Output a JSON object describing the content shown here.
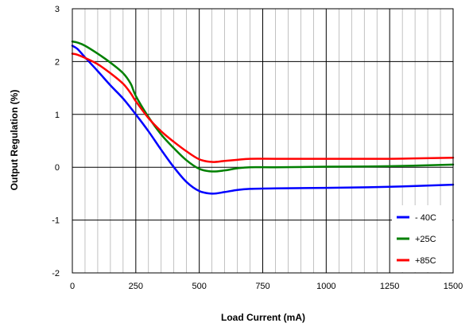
{
  "chart_data": {
    "type": "line",
    "title": "",
    "xlabel": "Load Current (mA)",
    "ylabel": "Output Regulation (%)",
    "xlim": [
      0,
      1500
    ],
    "ylim": [
      -2,
      3
    ],
    "x_ticks": [
      0,
      250,
      500,
      750,
      1000,
      1250,
      1500
    ],
    "y_ticks": [
      -2,
      -1,
      0,
      1,
      2,
      3
    ],
    "x_minor_step": 50,
    "grid": true,
    "legend_position": "bottom-right",
    "series": [
      {
        "name": "- 40C",
        "color": "#0000ff",
        "x": [
          0,
          20,
          50,
          100,
          150,
          200,
          250,
          300,
          350,
          400,
          450,
          500,
          550,
          600,
          650,
          700,
          800,
          1000,
          1250,
          1500
        ],
        "y": [
          2.3,
          2.24,
          2.08,
          1.82,
          1.55,
          1.3,
          1.0,
          0.68,
          0.33,
          0.0,
          -0.28,
          -0.45,
          -0.5,
          -0.47,
          -0.43,
          -0.41,
          -0.4,
          -0.39,
          -0.37,
          -0.33
        ]
      },
      {
        "name": "+25C",
        "color": "#008000",
        "x": [
          0,
          20,
          50,
          100,
          150,
          200,
          230,
          250,
          300,
          350,
          400,
          450,
          500,
          550,
          600,
          650,
          700,
          800,
          1000,
          1250,
          1500
        ],
        "y": [
          2.38,
          2.36,
          2.3,
          2.15,
          1.98,
          1.78,
          1.58,
          1.35,
          0.95,
          0.62,
          0.36,
          0.13,
          -0.03,
          -0.08,
          -0.06,
          -0.02,
          0.0,
          0.0,
          0.01,
          0.02,
          0.05
        ]
      },
      {
        "name": "+85C",
        "color": "#ff0000",
        "x": [
          0,
          20,
          50,
          100,
          150,
          200,
          230,
          250,
          300,
          350,
          400,
          450,
          500,
          550,
          600,
          650,
          700,
          800,
          1000,
          1250,
          1500
        ],
        "y": [
          2.15,
          2.13,
          2.07,
          1.95,
          1.78,
          1.58,
          1.4,
          1.25,
          0.93,
          0.68,
          0.48,
          0.3,
          0.15,
          0.1,
          0.12,
          0.14,
          0.16,
          0.16,
          0.16,
          0.16,
          0.18
        ]
      }
    ]
  }
}
